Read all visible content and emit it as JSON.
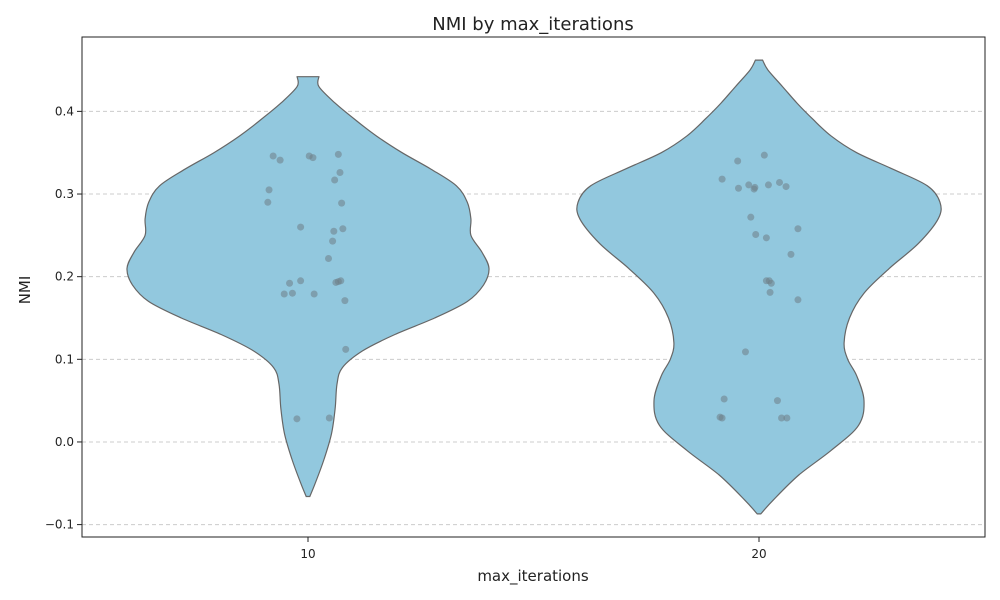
{
  "chart_data": {
    "type": "violin",
    "title": "NMI by max_iterations",
    "xlabel": "max_iterations",
    "ylabel": "NMI",
    "categories": [
      "10",
      "20"
    ],
    "ylim": [
      -0.115,
      0.49
    ],
    "yticks": [
      -0.1,
      0.0,
      0.1,
      0.2,
      0.3,
      0.4
    ],
    "ytick_labels": [
      "−0.1",
      "0.0",
      "0.1",
      "0.2",
      "0.3",
      "0.4"
    ],
    "grid": "y, dashed",
    "fill_color": "#92c8de",
    "edge_color": "#666666",
    "point_color": "#6e7e86",
    "violins": [
      {
        "category": "10",
        "range": [
          -0.066,
          0.442
        ],
        "profile": [
          [
            -0.066,
            0.01
          ],
          [
            -0.05,
            0.04
          ],
          [
            -0.02,
            0.09
          ],
          [
            0.01,
            0.13
          ],
          [
            0.04,
            0.15
          ],
          [
            0.07,
            0.16
          ],
          [
            0.09,
            0.19
          ],
          [
            0.11,
            0.3
          ],
          [
            0.13,
            0.48
          ],
          [
            0.15,
            0.7
          ],
          [
            0.17,
            0.88
          ],
          [
            0.19,
            0.97
          ],
          [
            0.21,
            1.0
          ],
          [
            0.23,
            0.96
          ],
          [
            0.25,
            0.9
          ],
          [
            0.27,
            0.9
          ],
          [
            0.29,
            0.88
          ],
          [
            0.31,
            0.82
          ],
          [
            0.33,
            0.68
          ],
          [
            0.35,
            0.52
          ],
          [
            0.37,
            0.38
          ],
          [
            0.39,
            0.26
          ],
          [
            0.41,
            0.15
          ],
          [
            0.43,
            0.06
          ],
          [
            0.442,
            0.06
          ]
        ],
        "points": [
          [
            -0.085,
            0.346
          ],
          [
            -0.068,
            0.341
          ],
          [
            0.012,
            0.344
          ],
          [
            0.003,
            0.346
          ],
          [
            0.074,
            0.348
          ],
          [
            0.078,
            0.326
          ],
          [
            0.065,
            0.317
          ],
          [
            -0.095,
            0.305
          ],
          [
            -0.098,
            0.29
          ],
          [
            0.082,
            0.289
          ],
          [
            -0.018,
            0.26
          ],
          [
            0.085,
            0.258
          ],
          [
            0.063,
            0.255
          ],
          [
            0.06,
            0.243
          ],
          [
            0.05,
            0.222
          ],
          [
            -0.018,
            0.195
          ],
          [
            0.08,
            0.195
          ],
          [
            0.074,
            0.194
          ],
          [
            0.068,
            0.193
          ],
          [
            -0.045,
            0.192
          ],
          [
            -0.038,
            0.18
          ],
          [
            -0.058,
            0.179
          ],
          [
            0.015,
            0.179
          ],
          [
            0.09,
            0.171
          ],
          [
            0.092,
            0.112
          ],
          [
            -0.027,
            0.028
          ],
          [
            0.052,
            0.029
          ]
        ]
      },
      {
        "category": "20",
        "range": [
          -0.087,
          0.462
        ],
        "profile": [
          [
            -0.087,
            0.01
          ],
          [
            -0.07,
            0.08
          ],
          [
            -0.04,
            0.22
          ],
          [
            -0.01,
            0.4
          ],
          [
            0.02,
            0.55
          ],
          [
            0.05,
            0.58
          ],
          [
            0.08,
            0.54
          ],
          [
            0.1,
            0.49
          ],
          [
            0.12,
            0.47
          ],
          [
            0.15,
            0.5
          ],
          [
            0.18,
            0.58
          ],
          [
            0.21,
            0.72
          ],
          [
            0.24,
            0.88
          ],
          [
            0.27,
            0.99
          ],
          [
            0.29,
            1.0
          ],
          [
            0.31,
            0.93
          ],
          [
            0.33,
            0.74
          ],
          [
            0.35,
            0.54
          ],
          [
            0.37,
            0.4
          ],
          [
            0.39,
            0.3
          ],
          [
            0.41,
            0.21
          ],
          [
            0.43,
            0.13
          ],
          [
            0.45,
            0.05
          ],
          [
            0.462,
            0.02
          ]
        ],
        "points": [
          [
            0.013,
            0.347
          ],
          [
            -0.052,
            0.34
          ],
          [
            0.05,
            0.314
          ],
          [
            -0.09,
            0.318
          ],
          [
            -0.025,
            0.311
          ],
          [
            0.023,
            0.311
          ],
          [
            0.066,
            0.309
          ],
          [
            -0.05,
            0.307
          ],
          [
            -0.012,
            0.306
          ],
          [
            -0.01,
            0.308
          ],
          [
            -0.02,
            0.272
          ],
          [
            0.095,
            0.258
          ],
          [
            -0.008,
            0.251
          ],
          [
            0.018,
            0.247
          ],
          [
            0.078,
            0.227
          ],
          [
            0.018,
            0.195
          ],
          [
            0.025,
            0.195
          ],
          [
            0.03,
            0.192
          ],
          [
            0.027,
            0.181
          ],
          [
            0.095,
            0.172
          ],
          [
            -0.033,
            0.109
          ],
          [
            -0.085,
            0.052
          ],
          [
            0.045,
            0.05
          ],
          [
            -0.095,
            0.03
          ],
          [
            -0.09,
            0.029
          ],
          [
            0.055,
            0.029
          ],
          [
            0.068,
            0.029
          ]
        ]
      }
    ]
  }
}
